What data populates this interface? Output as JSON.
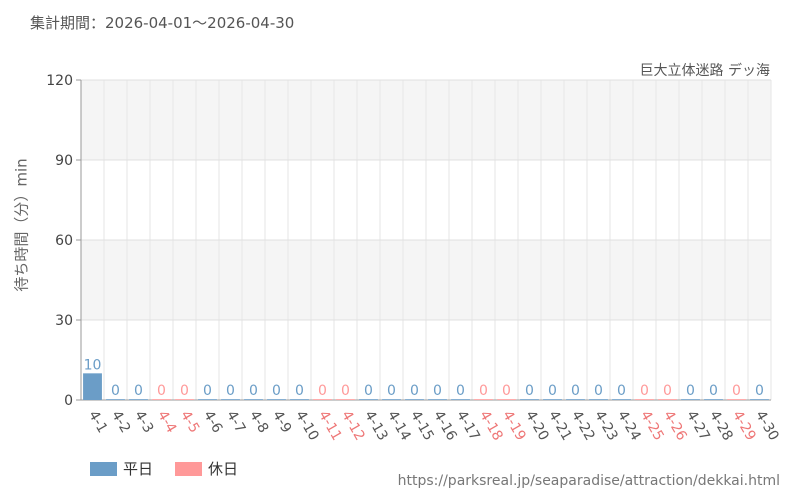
{
  "header": {
    "period_text": "集計期間：2026-04-01～2026-04-30"
  },
  "footer": {
    "source_url": "https://parksreal.jp/seaparadise/attraction/dekkai.html"
  },
  "chart_data": {
    "type": "bar",
    "title": "巨大立体迷路 デッ海",
    "ylabel": "待ち時間（分）min",
    "xlabel": "",
    "ylim": [
      0,
      120
    ],
    "yticks": [
      0,
      30,
      60,
      90,
      120
    ],
    "grid": true,
    "legend_position": "bottom-left",
    "categories": [
      "4-1",
      "4-2",
      "4-3",
      "4-4",
      "4-5",
      "4-6",
      "4-7",
      "4-8",
      "4-9",
      "4-10",
      "4-11",
      "4-12",
      "4-13",
      "4-14",
      "4-15",
      "4-16",
      "4-17",
      "4-18",
      "4-19",
      "4-20",
      "4-21",
      "4-22",
      "4-23",
      "4-24",
      "4-25",
      "4-26",
      "4-27",
      "4-28",
      "4-29",
      "4-30"
    ],
    "values": [
      10,
      0,
      0,
      0,
      0,
      0,
      0,
      0,
      0,
      0,
      0,
      0,
      0,
      0,
      0,
      0,
      0,
      0,
      0,
      0,
      0,
      0,
      0,
      0,
      0,
      0,
      0,
      0,
      0,
      0
    ],
    "day_type": [
      "weekday",
      "weekday",
      "weekday",
      "holiday",
      "holiday",
      "weekday",
      "weekday",
      "weekday",
      "weekday",
      "weekday",
      "holiday",
      "holiday",
      "weekday",
      "weekday",
      "weekday",
      "weekday",
      "weekday",
      "holiday",
      "holiday",
      "weekday",
      "weekday",
      "weekday",
      "weekday",
      "weekday",
      "holiday",
      "holiday",
      "weekday",
      "weekday",
      "holiday",
      "weekday"
    ],
    "series": [
      {
        "key": "weekday",
        "name": "平日",
        "color": "#6b9dc7"
      },
      {
        "key": "holiday",
        "name": "休日",
        "color": "#ff9999"
      }
    ],
    "label_colors": {
      "weekday": "#555555",
      "holiday": "#ee7777"
    }
  }
}
